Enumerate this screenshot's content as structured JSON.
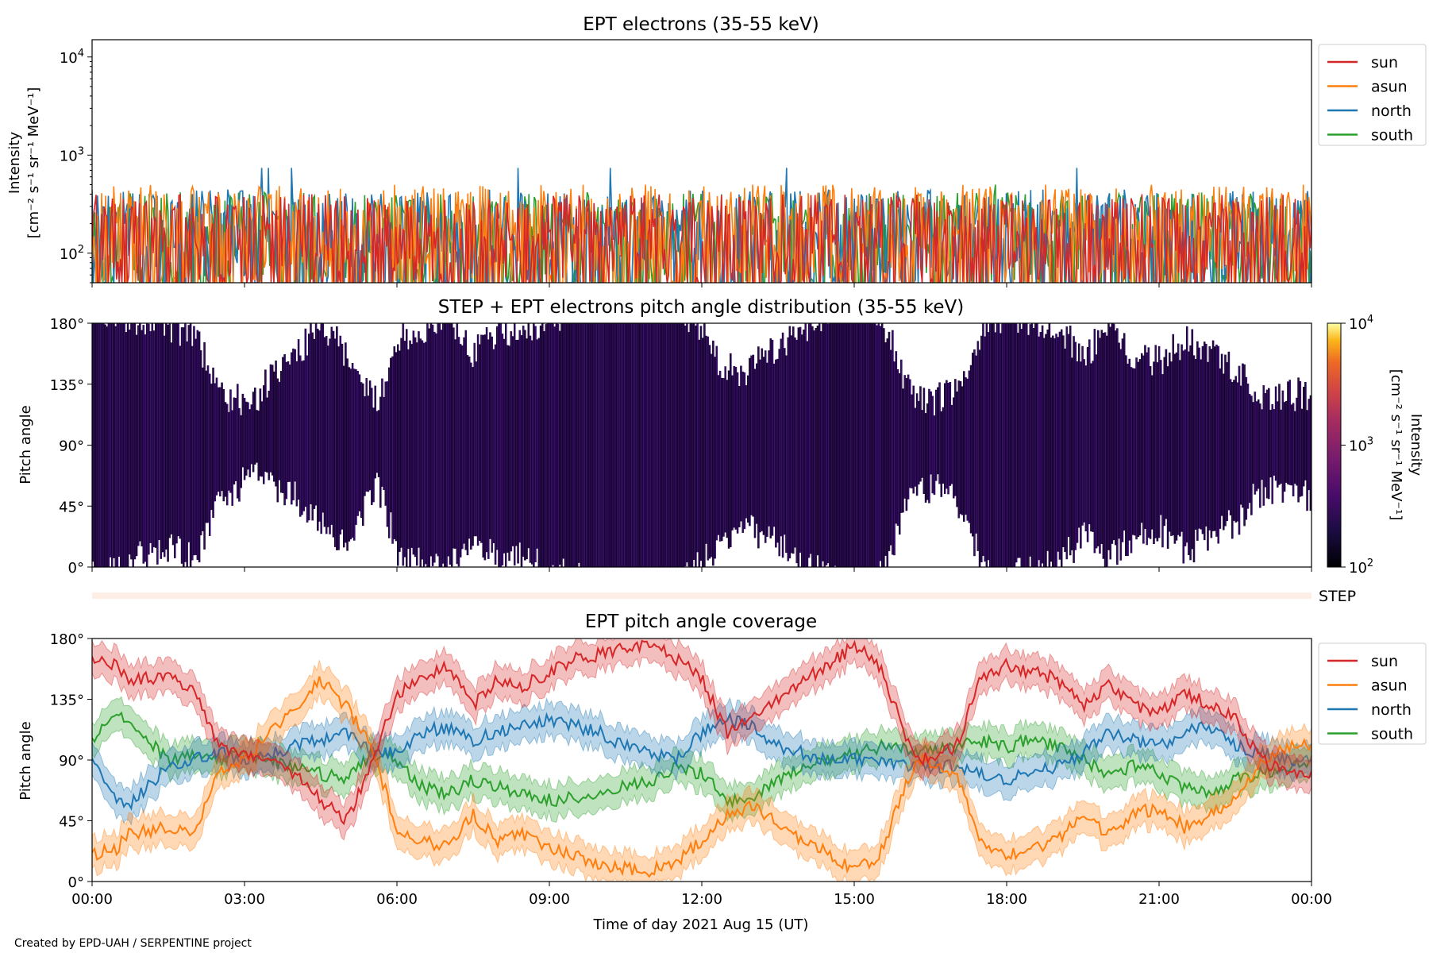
{
  "footer": {
    "credit": "Created by EPD-UAH / SERPENTINE project"
  },
  "colors": {
    "sun": "#d62728",
    "asun": "#ff7f0e",
    "north": "#1f77b4",
    "south": "#2ca02c",
    "pad_fill": "#3b0f70",
    "step_bar": "#fdeee6"
  },
  "chart_data": [
    {
      "panel": "intensity",
      "type": "line",
      "title": "EPT electrons (35-55 keV)",
      "ylabel_line1": "Intensity",
      "ylabel_line2": "[cm⁻² s⁻¹ sr⁻¹ MeV⁻¹]",
      "yscale": "log",
      "ylim": [
        50,
        15000
      ],
      "yticks": [
        {
          "value": 100,
          "base": "10",
          "exp": "2"
        },
        {
          "value": 1000,
          "base": "10",
          "exp": "3"
        },
        {
          "value": 10000,
          "base": "10",
          "exp": "4"
        }
      ],
      "xlim_hours": [
        0,
        24
      ],
      "legend_position": "outside-right",
      "series": [
        {
          "name": "sun",
          "color": "#d62728",
          "typical_range": [
            50,
            400
          ],
          "peak": 520
        },
        {
          "name": "asun",
          "color": "#ff7f0e",
          "typical_range": [
            50,
            500
          ],
          "peak": 650
        },
        {
          "name": "north",
          "color": "#1f77b4",
          "typical_range": [
            50,
            450
          ],
          "peak": 740
        },
        {
          "name": "south",
          "color": "#2ca02c",
          "typical_range": [
            50,
            420
          ],
          "peak": 500
        }
      ]
    },
    {
      "panel": "pitch_angle_distribution",
      "type": "heatmap",
      "title": "STEP + EPT electrons pitch angle distribution (35-55 keV)",
      "ylabel": "Pitch angle",
      "ylim": [
        0,
        180
      ],
      "yticks": [
        "0°",
        "45°",
        "90°",
        "135°",
        "180°"
      ],
      "xlim_hours": [
        0,
        24
      ],
      "colorbar": {
        "label_line1": "Intensity",
        "label_line2": "[cm⁻² s⁻¹ sr⁻¹ MeV⁻¹]",
        "scale": "log",
        "range": [
          100,
          10000
        ],
        "ticks": [
          {
            "base": "10",
            "exp": "2"
          },
          {
            "base": "10",
            "exp": "3"
          },
          {
            "base": "10",
            "exp": "4"
          }
        ],
        "colormap": "inferno"
      },
      "step_label": "STEP"
    },
    {
      "panel": "pitch_angle_coverage",
      "type": "line",
      "title": "EPT pitch angle coverage",
      "ylabel": "Pitch angle",
      "ylim": [
        0,
        180
      ],
      "yticks": [
        "0°",
        "45°",
        "90°",
        "135°",
        "180°"
      ],
      "xlabel": "Time of day 2021 Aug 15 (UT)",
      "xticks": [
        "00:00",
        "03:00",
        "06:00",
        "09:00",
        "12:00",
        "15:00",
        "18:00",
        "21:00",
        "00:00"
      ],
      "xlim_hours": [
        0,
        24
      ],
      "legend_position": "outside-right",
      "series": [
        {
          "name": "sun",
          "color": "#d62728",
          "x": [
            0,
            0.5,
            0.7,
            1.5,
            2.0,
            2.5,
            3.0,
            3.5,
            4.0,
            4.5,
            5.0,
            5.5,
            6.0,
            6.5,
            7.0,
            7.5,
            8.0,
            8.5,
            9.0,
            9.5,
            10.0,
            10.5,
            11.0,
            11.5,
            12.0,
            12.5,
            13.0,
            13.5,
            14.0,
            14.5,
            15.0,
            15.5,
            16.0,
            16.3,
            17.0,
            17.5,
            18.0,
            18.5,
            19.0,
            19.5,
            20.0,
            20.5,
            21.0,
            21.5,
            22.0,
            22.5,
            23.0,
            23.5,
            24.0
          ],
          "y": [
            165,
            160,
            150,
            150,
            145,
            100,
            95,
            90,
            80,
            60,
            45,
            85,
            140,
            150,
            160,
            130,
            150,
            145,
            155,
            165,
            168,
            172,
            175,
            165,
            150,
            110,
            120,
            135,
            150,
            160,
            175,
            160,
            110,
            90,
            100,
            150,
            160,
            155,
            150,
            130,
            145,
            130,
            125,
            140,
            130,
            120,
            90,
            80,
            80
          ]
        },
        {
          "name": "asun",
          "color": "#ff7f0e",
          "x": [
            0,
            0.5,
            0.7,
            1.5,
            2.0,
            2.5,
            3.0,
            3.5,
            4.0,
            4.5,
            5.0,
            5.5,
            6.0,
            6.5,
            7.0,
            7.5,
            8.0,
            8.5,
            9.0,
            9.5,
            10.0,
            10.5,
            11.0,
            11.5,
            12.0,
            12.5,
            13.0,
            13.5,
            14.0,
            14.5,
            15.0,
            15.5,
            16.0,
            16.3,
            17.0,
            17.5,
            18.0,
            18.5,
            19.0,
            19.5,
            20.0,
            20.5,
            21.0,
            21.5,
            22.0,
            22.5,
            23.0,
            23.5,
            24.0
          ],
          "y": [
            20,
            25,
            35,
            40,
            35,
            80,
            90,
            110,
            130,
            150,
            130,
            100,
            40,
            30,
            25,
            50,
            30,
            35,
            25,
            20,
            12,
            10,
            8,
            15,
            30,
            50,
            55,
            45,
            30,
            20,
            8,
            20,
            70,
            90,
            80,
            30,
            20,
            25,
            30,
            50,
            35,
            50,
            55,
            40,
            50,
            60,
            90,
            100,
            100
          ]
        },
        {
          "name": "north",
          "color": "#1f77b4",
          "x": [
            0,
            0.5,
            0.7,
            1.5,
            2.0,
            2.5,
            3.0,
            3.5,
            4.0,
            4.5,
            5.0,
            5.5,
            6.0,
            6.5,
            7.0,
            7.5,
            8.0,
            8.5,
            9.0,
            9.5,
            10.0,
            10.5,
            11.0,
            11.5,
            12.0,
            12.5,
            13.0,
            13.5,
            14.0,
            14.5,
            15.0,
            15.5,
            16.0,
            16.3,
            17.0,
            17.5,
            18.0,
            18.5,
            19.0,
            19.5,
            20.0,
            20.5,
            21.0,
            21.5,
            22.0,
            22.5,
            23.0,
            23.5,
            24.0
          ],
          "y": [
            90,
            60,
            55,
            85,
            90,
            95,
            90,
            95,
            100,
            105,
            110,
            95,
            95,
            110,
            115,
            105,
            110,
            115,
            120,
            115,
            110,
            100,
            95,
            90,
            110,
            120,
            115,
            100,
            95,
            90,
            90,
            88,
            85,
            85,
            85,
            80,
            75,
            80,
            85,
            95,
            110,
            105,
            100,
            110,
            115,
            100,
            95,
            90,
            90
          ]
        },
        {
          "name": "south",
          "color": "#2ca02c",
          "x": [
            0,
            0.5,
            0.7,
            1.5,
            2.0,
            2.5,
            3.0,
            3.5,
            4.0,
            4.5,
            5.0,
            5.5,
            6.0,
            6.5,
            7.0,
            7.5,
            8.0,
            8.5,
            9.0,
            9.5,
            10.0,
            10.5,
            11.0,
            11.5,
            12.0,
            12.5,
            13.0,
            13.5,
            14.0,
            14.5,
            15.0,
            15.5,
            16.0,
            16.3,
            17.0,
            17.5,
            18.0,
            18.5,
            19.0,
            19.5,
            20.0,
            20.5,
            21.0,
            21.5,
            22.0,
            22.5,
            23.0,
            23.5,
            24.0
          ],
          "y": [
            105,
            125,
            120,
            90,
            95,
            90,
            95,
            90,
            85,
            80,
            75,
            95,
            90,
            70,
            65,
            75,
            70,
            65,
            60,
            62,
            65,
            70,
            75,
            85,
            80,
            60,
            62,
            75,
            85,
            90,
            95,
            100,
            100,
            95,
            100,
            105,
            100,
            105,
            100,
            90,
            80,
            85,
            80,
            70,
            65,
            75,
            80,
            85,
            90
          ]
        }
      ]
    }
  ]
}
